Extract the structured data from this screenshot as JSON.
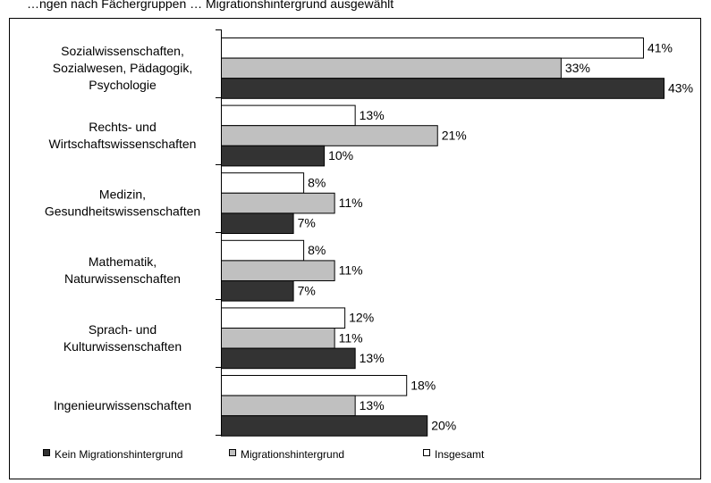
{
  "title": "…ngen nach Fächergruppen … Migrationshintergrund ausgewählt",
  "chart_data": {
    "type": "bar",
    "orientation": "horizontal",
    "categories": [
      [
        "Sozialwissenschaften,",
        "Sozialwesen, Pädagogik,",
        "Psychologie"
      ],
      [
        "Rechts- und",
        "Wirtschaftswissenschaften"
      ],
      [
        "Medizin,",
        "Gesundheitswissenschaften"
      ],
      [
        "Mathematik,",
        "Naturwissenschaften"
      ],
      [
        "Sprach- und",
        "Kulturwissenschaften"
      ],
      [
        "Ingenieurwissenschaften"
      ]
    ],
    "series": [
      {
        "name": "Insgesamt",
        "values": [
          41,
          13,
          8,
          8,
          12,
          18
        ],
        "color": "#ffffff"
      },
      {
        "name": "Migrationshintergrund",
        "values": [
          33,
          21,
          11,
          11,
          11,
          13
        ],
        "color": "#c0c0c0"
      },
      {
        "name": "Kein Migrationshintergrund",
        "values": [
          43,
          10,
          7,
          7,
          13,
          20
        ],
        "color": "#333333"
      }
    ],
    "value_suffix": "%",
    "xlim": [
      0,
      43
    ],
    "legend": {
      "placement": "bottom",
      "order": [
        "Kein Migrationshintergrund",
        "Migrationshintergrund",
        "Insgesamt"
      ]
    },
    "grid": false
  }
}
